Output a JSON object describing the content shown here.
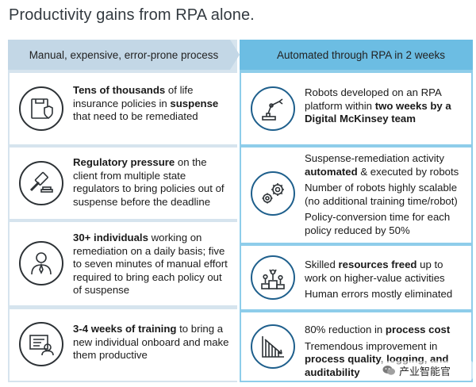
{
  "title": "Productivity gains from RPA alone.",
  "headers": {
    "left": "Manual, expensive, error-prone process",
    "right": "Automated through RPA in 2 weeks"
  },
  "left_rows": [
    {
      "icon": "folder-shield-icon",
      "segments": [
        {
          "t": "Tens of thousands",
          "b": true
        },
        {
          "t": " of life insurance policies in ",
          "b": false
        },
        {
          "t": "suspense",
          "b": true
        },
        {
          "t": " that need to be remediated",
          "b": false
        }
      ]
    },
    {
      "icon": "gavel-icon",
      "segments": [
        {
          "t": "Regulatory pressure",
          "b": true
        },
        {
          "t": " on the client from multiple state regulators to bring policies out of suspense before the deadline",
          "b": false
        }
      ]
    },
    {
      "icon": "person-icon",
      "segments": [
        {
          "t": "30+ individuals",
          "b": true
        },
        {
          "t": " working on remediation on a daily basis; five to seven minutes of manual effort required to bring each policy out of suspense",
          "b": false
        }
      ]
    },
    {
      "icon": "training-icon",
      "segments": [
        {
          "t": "3-4 weeks of training",
          "b": true
        },
        {
          "t": " to bring a new individual onboard and make them productive",
          "b": false
        }
      ]
    }
  ],
  "right_rows": [
    {
      "icon": "robot-arm-icon",
      "paragraphs": [
        [
          {
            "t": "Robots developed on an RPA platform within ",
            "b": false
          },
          {
            "t": "two weeks by a Digital McKinsey team",
            "b": true
          }
        ]
      ]
    },
    {
      "icon": "gears-icon",
      "paragraphs": [
        [
          {
            "t": "Suspense-remediation activity ",
            "b": false
          },
          {
            "t": "automated",
            "b": true
          },
          {
            "t": " & executed by robots",
            "b": false
          }
        ],
        [
          {
            "t": "Number of robots highly scalable (no additional training time/robot)",
            "b": false
          }
        ],
        [
          {
            "t": "Policy-conversion time for each policy reduced by 50%",
            "b": false
          }
        ]
      ]
    },
    {
      "icon": "podium-people-icon",
      "paragraphs": [
        [
          {
            "t": "Skilled ",
            "b": false
          },
          {
            "t": "resources freed",
            "b": true
          },
          {
            "t": " up to work on higher-value activities",
            "b": false
          }
        ],
        [
          {
            "t": "Human errors mostly eliminated",
            "b": false
          }
        ]
      ]
    },
    {
      "icon": "declining-chart-icon",
      "paragraphs": [
        [
          {
            "t": "80% reduction in ",
            "b": false
          },
          {
            "t": "process cost",
            "b": true
          }
        ],
        [
          {
            "t": "Tremendous improvement in ",
            "b": false
          },
          {
            "t": "process quality, logging, and auditability",
            "b": true
          }
        ]
      ]
    }
  ],
  "watermark": "产业智能官",
  "colors": {
    "left_bg": "#d6e4ee",
    "right_bg": "#8ecdea",
    "left_header": "#c3d7e6",
    "right_header": "#6cbde3",
    "card": "#ffffff"
  }
}
